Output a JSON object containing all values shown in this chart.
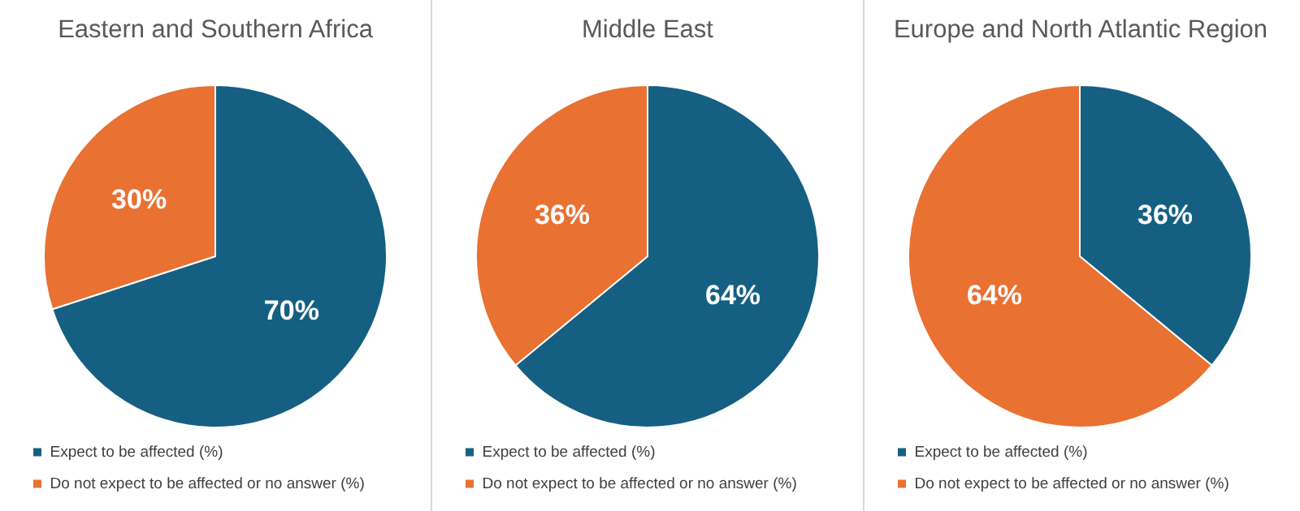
{
  "chart_data": [
    {
      "type": "pie",
      "title": "Eastern and Southern Africa",
      "categories": [
        "Expect to be affected (%)",
        "Do not expect to be affected or no answer (%)"
      ],
      "values": [
        70,
        30
      ],
      "value_labels": [
        "70%",
        "30%"
      ],
      "colors": [
        "#156082",
        "#e97132"
      ],
      "legend": "bottom left"
    },
    {
      "type": "pie",
      "title": "Middle East",
      "categories": [
        "Expect to be affected (%)",
        "Do not expect to be affected or no answer (%)"
      ],
      "values": [
        64,
        36
      ],
      "value_labels": [
        "64%",
        "36%"
      ],
      "colors": [
        "#156082",
        "#e97132"
      ],
      "legend": "bottom left"
    },
    {
      "type": "pie",
      "title": "Europe and North Atlantic Region",
      "categories": [
        "Expect to be affected (%)",
        "Do not expect to be affected or no answer (%)"
      ],
      "values": [
        36,
        64
      ],
      "value_labels": [
        "36%",
        "64%"
      ],
      "colors": [
        "#156082",
        "#e97132"
      ],
      "legend": "bottom left"
    }
  ]
}
